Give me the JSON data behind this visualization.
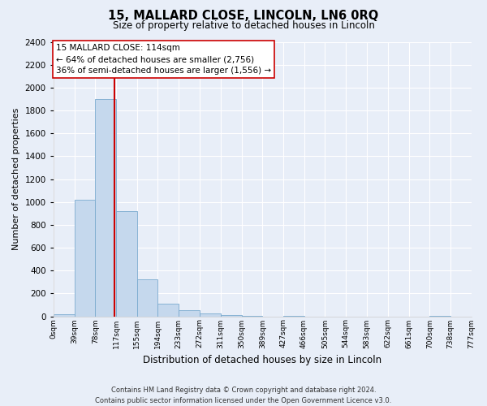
{
  "title": "15, MALLARD CLOSE, LINCOLN, LN6 0RQ",
  "subtitle": "Size of property relative to detached houses in Lincoln",
  "xlabel": "Distribution of detached houses by size in Lincoln",
  "ylabel": "Number of detached properties",
  "bin_edges": [
    0,
    39,
    78,
    117,
    155,
    194,
    233,
    272,
    311,
    350,
    389,
    427,
    466,
    505,
    544,
    583,
    622,
    661,
    700,
    738,
    777
  ],
  "bin_labels": [
    "0sqm",
    "39sqm",
    "78sqm",
    "117sqm",
    "155sqm",
    "194sqm",
    "233sqm",
    "272sqm",
    "311sqm",
    "350sqm",
    "389sqm",
    "427sqm",
    "466sqm",
    "505sqm",
    "544sqm",
    "583sqm",
    "622sqm",
    "661sqm",
    "700sqm",
    "738sqm",
    "777sqm"
  ],
  "bar_heights": [
    20,
    1020,
    1900,
    920,
    320,
    110,
    50,
    25,
    10,
    5,
    0,
    5,
    0,
    0,
    0,
    0,
    0,
    0,
    5,
    0
  ],
  "bar_color": "#c5d8ed",
  "bar_edge_color": "#7aaacf",
  "property_line_x": 114,
  "property_line_color": "#cc0000",
  "annotation_line1": "15 MALLARD CLOSE: 114sqm",
  "annotation_line2": "← 64% of detached houses are smaller (2,756)",
  "annotation_line3": "36% of semi-detached houses are larger (1,556) →",
  "annotation_box_facecolor": "#ffffff",
  "annotation_box_edgecolor": "#cc0000",
  "ylim": [
    0,
    2400
  ],
  "yticks": [
    0,
    200,
    400,
    600,
    800,
    1000,
    1200,
    1400,
    1600,
    1800,
    2000,
    2200,
    2400
  ],
  "footer_line1": "Contains HM Land Registry data © Crown copyright and database right 2024.",
  "footer_line2": "Contains public sector information licensed under the Open Government Licence v3.0.",
  "background_color": "#e8eef8",
  "plot_bg_color": "#e8eef8",
  "grid_color": "#ffffff"
}
